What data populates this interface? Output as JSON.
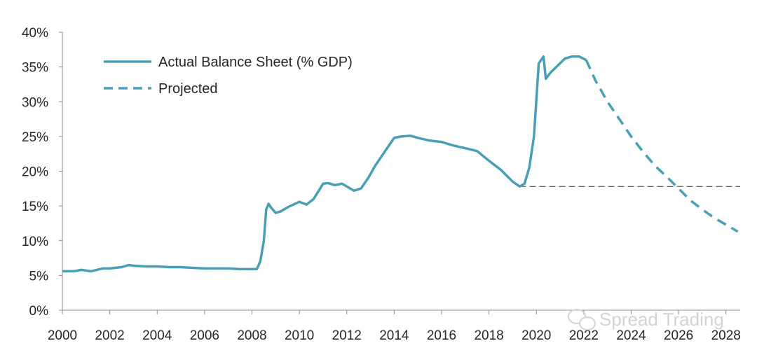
{
  "chart_data": {
    "type": "line",
    "title": "",
    "xlabel": "",
    "ylabel": "",
    "xlim": [
      2000,
      2028.6
    ],
    "ylim": [
      0,
      40
    ],
    "x_ticks": [
      "2000",
      "2002",
      "2004",
      "2006",
      "2008",
      "2010",
      "2012",
      "2014",
      "2016",
      "2018",
      "2020",
      "2022",
      "2024",
      "2026",
      "2028"
    ],
    "y_ticks": [
      "0%",
      "5%",
      "10%",
      "15%",
      "20%",
      "25%",
      "30%",
      "35%",
      "40%"
    ],
    "grid": false,
    "legend_position": "top-left",
    "series": [
      {
        "name": "Actual Balance Sheet (% GDP)",
        "style": "solid",
        "color": "#4a9fb5",
        "x": [
          2000.0,
          2000.5,
          2000.8,
          2001.2,
          2001.7,
          2002.0,
          2002.5,
          2002.8,
          2003.0,
          2003.5,
          2004.0,
          2004.5,
          2005.0,
          2005.5,
          2006.0,
          2006.5,
          2007.0,
          2007.5,
          2008.0,
          2008.2,
          2008.35,
          2008.5,
          2008.6,
          2008.7,
          2008.8,
          2009.0,
          2009.2,
          2009.5,
          2010.0,
          2010.3,
          2010.6,
          2011.0,
          2011.2,
          2011.5,
          2011.8,
          2012.0,
          2012.3,
          2012.6,
          2012.9,
          2013.2,
          2013.6,
          2014.0,
          2014.3,
          2014.7,
          2015.0,
          2015.5,
          2016.0,
          2016.5,
          2017.0,
          2017.5,
          2018.0,
          2018.5,
          2019.0,
          2019.3,
          2019.5,
          2019.7,
          2019.9,
          2020.1,
          2020.3,
          2020.4,
          2020.6,
          2020.9,
          2021.2,
          2021.5,
          2021.8,
          2022.1
        ],
        "values": [
          5.6,
          5.6,
          5.8,
          5.6,
          6.0,
          6.0,
          6.2,
          6.5,
          6.4,
          6.3,
          6.3,
          6.2,
          6.2,
          6.1,
          6.0,
          6.0,
          6.0,
          5.9,
          5.9,
          5.9,
          7.0,
          10.0,
          14.5,
          15.3,
          14.8,
          14.0,
          14.2,
          14.8,
          15.6,
          15.2,
          16.0,
          18.2,
          18.3,
          18.0,
          18.2,
          17.8,
          17.2,
          17.5,
          19.0,
          20.8,
          22.8,
          24.8,
          25.0,
          25.1,
          24.8,
          24.4,
          24.2,
          23.7,
          23.3,
          22.9,
          21.5,
          20.2,
          18.5,
          17.8,
          18.2,
          20.5,
          25.0,
          35.5,
          36.5,
          33.3,
          34.2,
          35.2,
          36.2,
          36.5,
          36.5,
          36.0
        ]
      },
      {
        "name": "Projected",
        "style": "dashed",
        "color": "#4a9fb5",
        "x": [
          2022.1,
          2022.5,
          2023.0,
          2023.5,
          2024.0,
          2024.5,
          2025.0,
          2025.5,
          2026.0,
          2026.5,
          2027.0,
          2027.5,
          2028.0,
          2028.5
        ],
        "values": [
          36.0,
          33.0,
          30.0,
          27.5,
          25.0,
          22.8,
          20.8,
          19.2,
          17.5,
          15.8,
          14.5,
          13.3,
          12.3,
          11.3
        ]
      }
    ],
    "reference_line": {
      "style": "dashed",
      "color": "#555555",
      "value": 17.8,
      "x_start": 2019.3,
      "x_end": 2028.6
    }
  },
  "watermark": {
    "text": "Spread Trading",
    "icon": "wechat-icon"
  }
}
